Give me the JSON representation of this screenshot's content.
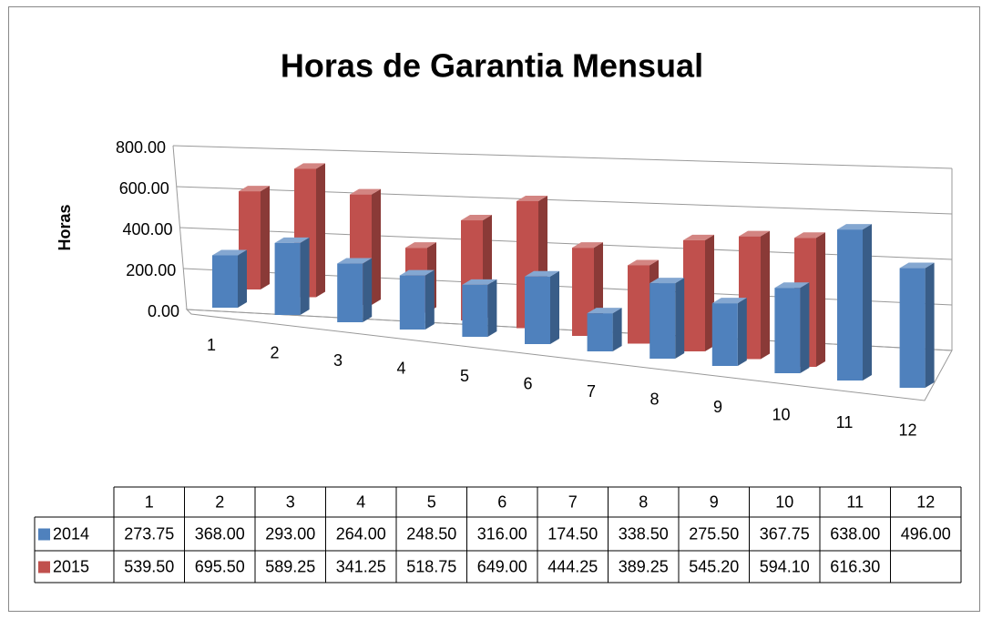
{
  "chart_data": {
    "type": "bar",
    "title": "Horas de Garantia Mensual",
    "y_label": "Horas",
    "categories": [
      "1",
      "2",
      "3",
      "4",
      "5",
      "6",
      "7",
      "8",
      "9",
      "10",
      "11",
      "12"
    ],
    "series": [
      {
        "name": "2014",
        "color": "#4f81bd",
        "values": [
          273.75,
          368.0,
          293.0,
          264.0,
          248.5,
          316.0,
          174.5,
          338.5,
          275.5,
          367.75,
          638.0,
          496.0
        ],
        "value_labels": [
          "273.75",
          "368.00",
          "293.00",
          "264.00",
          "248.50",
          "316.00",
          "174.50",
          "338.50",
          "275.50",
          "367.75",
          "638.00",
          "496.00"
        ]
      },
      {
        "name": "2015",
        "color": "#c0504d",
        "values": [
          539.5,
          695.5,
          589.25,
          341.25,
          518.75,
          649.0,
          444.25,
          389.25,
          545.2,
          594.1,
          616.3,
          null
        ],
        "value_labels": [
          "539.50",
          "695.50",
          "589.25",
          "341.25",
          "518.75",
          "649.00",
          "444.25",
          "389.25",
          "545.20",
          "594.10",
          "616.30",
          null
        ]
      }
    ],
    "ylim": [
      0,
      800
    ],
    "yticks": [
      {
        "value": 0,
        "label": "0.00"
      },
      {
        "value": 200,
        "label": "200.00"
      },
      {
        "value": 400,
        "label": "400.00"
      },
      {
        "value": 600,
        "label": "600.00"
      },
      {
        "value": 800,
        "label": "800.00"
      }
    ],
    "grid": true,
    "data_table": true
  }
}
